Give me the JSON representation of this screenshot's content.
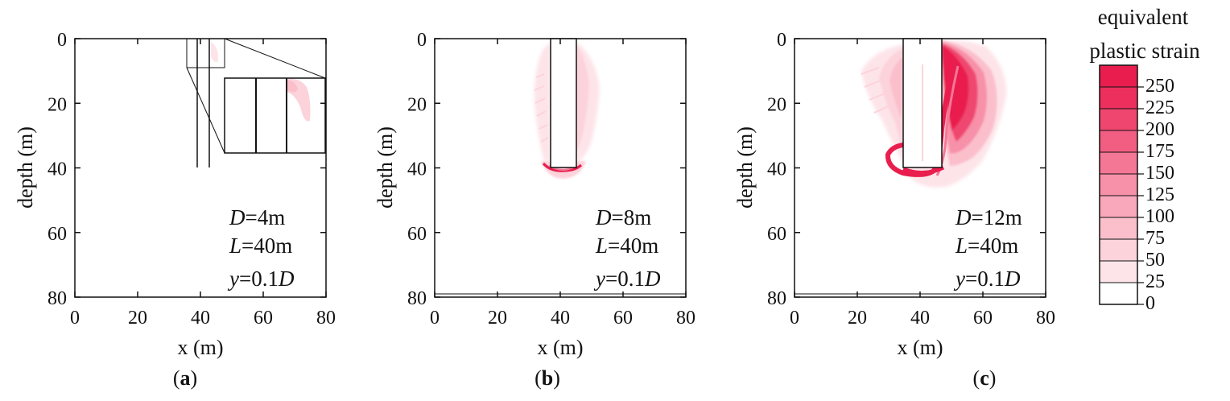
{
  "colorbar": {
    "title_line1": "equivalent",
    "title_line2": "plastic strain",
    "levels": [
      "0",
      "25",
      "50",
      "75",
      "100",
      "125",
      "150",
      "175",
      "200",
      "225",
      "250"
    ],
    "colors": [
      "#ffffff",
      "#fde4e9",
      "#fcd3db",
      "#fbbfcc",
      "#f9a8bb",
      "#f791a9",
      "#f57796",
      "#f25d82",
      "#ef466f",
      "#ec2f5d",
      "#e91e4e"
    ]
  },
  "axes_text": {
    "xlabel": "x (m)",
    "ylabel": "depth (m)"
  },
  "chart_data": [
    {
      "type": "heatmap",
      "panel": "(a)",
      "panel_letter": "a",
      "xlabel": "x (m)",
      "ylabel": "depth (m)",
      "xlim": [
        0,
        80
      ],
      "ylim": [
        80,
        0
      ],
      "xticks": [
        "0",
        "20",
        "40",
        "60",
        "80"
      ],
      "yticks": [
        "0",
        "20",
        "40",
        "60",
        "80"
      ],
      "annotations": [
        {
          "var": "D",
          "rest": "=4m"
        },
        {
          "var": "L",
          "rest": "=40m"
        },
        {
          "var": "y",
          "rest": "=0.1",
          "var2": "D"
        }
      ],
      "pile": {
        "D": 4,
        "L": 40
      },
      "max_strain_level": 50
    },
    {
      "type": "heatmap",
      "panel": "(b)",
      "panel_letter": "b",
      "xlabel": "x (m)",
      "ylabel": "depth (m)",
      "xlim": [
        0,
        80
      ],
      "ylim": [
        80,
        0
      ],
      "xticks": [
        "0",
        "20",
        "40",
        "60",
        "80"
      ],
      "yticks": [
        "0",
        "20",
        "40",
        "60",
        "80"
      ],
      "annotations": [
        {
          "var": "D",
          "rest": "=8m"
        },
        {
          "var": "L",
          "rest": "=40m"
        },
        {
          "var": "y",
          "rest": "=0.1",
          "var2": "D"
        }
      ],
      "pile": {
        "D": 8,
        "L": 40
      },
      "max_strain_level": 250
    },
    {
      "type": "heatmap",
      "panel": "(c)",
      "panel_letter": "c",
      "xlabel": "x (m)",
      "ylabel": "depth (m)",
      "xlim": [
        0,
        80
      ],
      "ylim": [
        80,
        0
      ],
      "xticks": [
        "0",
        "20",
        "40",
        "60",
        "80"
      ],
      "yticks": [
        "0",
        "20",
        "40",
        "60",
        "80"
      ],
      "annotations": [
        {
          "var": "D",
          "rest": "=12m"
        },
        {
          "var": "L",
          "rest": "=40m"
        },
        {
          "var": "y",
          "rest": "=0.1",
          "var2": "D"
        }
      ],
      "pile": {
        "D": 12,
        "L": 40
      },
      "max_strain_level": 250
    }
  ]
}
